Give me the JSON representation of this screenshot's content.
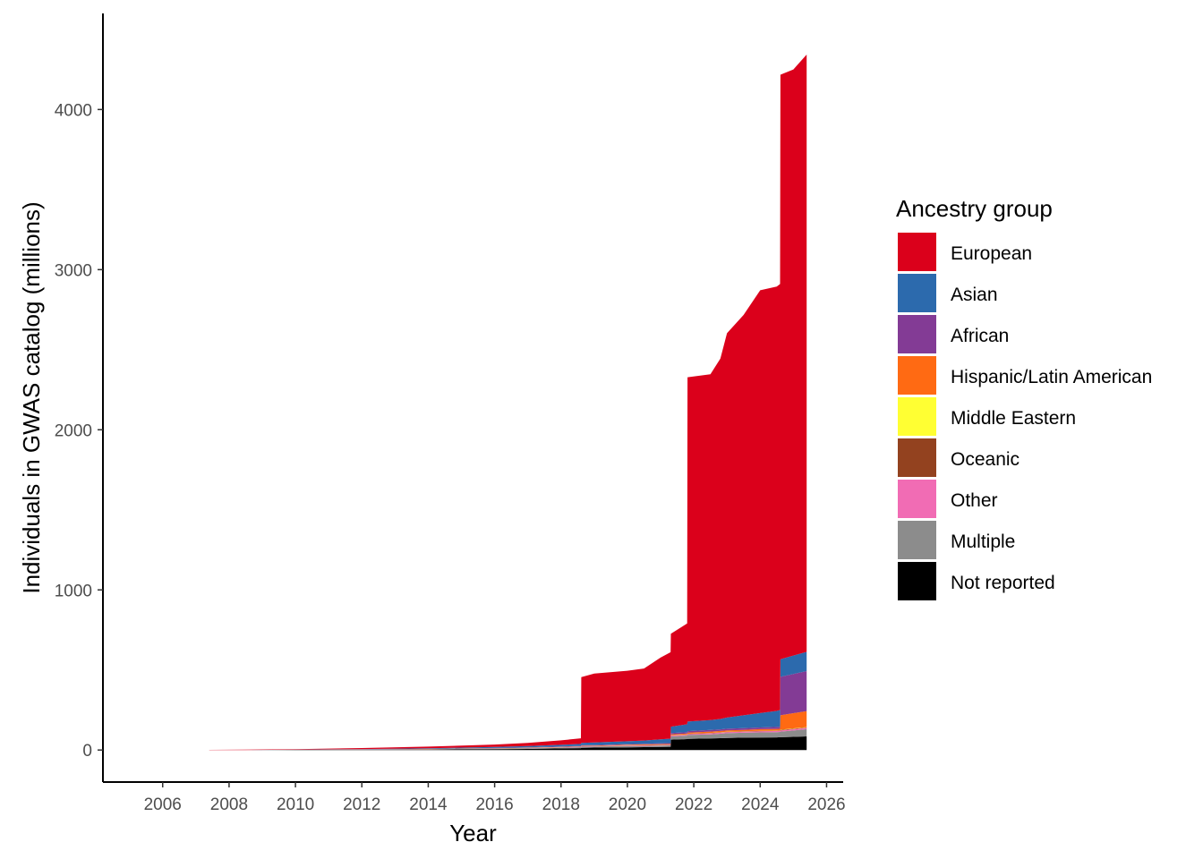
{
  "chart_data": {
    "type": "area",
    "stacked": true,
    "title": "",
    "xlabel": "Year",
    "ylabel": "Individuals in GWAS catalog (millions)",
    "xlim": [
      2004.2,
      2026.5
    ],
    "ylim": [
      -200,
      4600
    ],
    "x_ticks": [
      2006,
      2008,
      2010,
      2012,
      2014,
      2016,
      2018,
      2020,
      2022,
      2024,
      2026
    ],
    "y_ticks": [
      0,
      1000,
      2000,
      3000,
      4000
    ],
    "grid": false,
    "legend_position": "right",
    "legend_title": "Ancestry group",
    "x": [
      2007.4,
      2008.5,
      2010,
      2012,
      2014,
      2016,
      2017,
      2018,
      2018.6,
      2018.61,
      2019,
      2020,
      2020.5,
      2021,
      2021.3,
      2021.31,
      2021.8,
      2021.81,
      2022.5,
      2022.8,
      2023,
      2023.5,
      2024,
      2024.5,
      2024.6,
      2024.61,
      2025,
      2025.4
    ],
    "series": [
      {
        "name": "Not reported",
        "color": "#000000",
        "values": [
          0,
          0.3,
          1,
          2,
          3,
          5,
          7,
          10,
          12,
          14,
          15,
          17,
          18,
          19,
          20,
          65,
          68,
          70,
          72,
          74,
          75,
          77,
          78,
          79,
          80,
          80,
          82,
          85
        ]
      },
      {
        "name": "Multiple",
        "color": "#8c8c8c",
        "values": [
          0,
          0,
          0.5,
          1,
          2,
          3,
          4,
          5,
          6,
          7,
          7,
          8,
          8,
          9,
          9,
          20,
          22,
          24,
          26,
          28,
          30,
          31,
          32,
          33,
          33,
          35,
          40,
          45
        ]
      },
      {
        "name": "Other",
        "color": "#f16cb4",
        "values": [
          0,
          0,
          0,
          0.3,
          0.5,
          1,
          1,
          1.5,
          2,
          2,
          2,
          3,
          3,
          3,
          3,
          5,
          5,
          5,
          6,
          6,
          6,
          6,
          7,
          7,
          7,
          7,
          8,
          8
        ]
      },
      {
        "name": "Oceanic",
        "color": "#93421f",
        "values": [
          0,
          0,
          0,
          0,
          0,
          0.5,
          0.5,
          0.5,
          0.5,
          0.5,
          0.5,
          1,
          1,
          1,
          1,
          1,
          1,
          2,
          2,
          2,
          2,
          2,
          2,
          2,
          2,
          3,
          3,
          3
        ]
      },
      {
        "name": "Middle Eastern",
        "color": "#ffff33",
        "values": [
          0,
          0,
          0,
          0,
          0,
          0.5,
          0.5,
          0.5,
          0.5,
          0.5,
          0.5,
          1,
          1,
          1,
          1,
          1,
          1,
          1,
          1,
          1,
          1,
          1,
          1,
          1,
          1,
          2,
          2,
          2
        ]
      },
      {
        "name": "Hispanic/Latin American",
        "color": "#ff6a13",
        "values": [
          0,
          0,
          0,
          0.5,
          1,
          1,
          1.5,
          2,
          2,
          3,
          3,
          3,
          4,
          4,
          4,
          6,
          6,
          7,
          8,
          8,
          9,
          9,
          10,
          10,
          10,
          90,
          95,
          100
        ]
      },
      {
        "name": "African",
        "color": "#833b95",
        "values": [
          0,
          0,
          0.3,
          0.5,
          1,
          2,
          2,
          3,
          3,
          3,
          3,
          4,
          4,
          5,
          5,
          8,
          8,
          9,
          10,
          10,
          10,
          11,
          11,
          12,
          12,
          240,
          245,
          250
        ]
      },
      {
        "name": "Asian",
        "color": "#2c6aad",
        "values": [
          0,
          0,
          1,
          2,
          4,
          6,
          8,
          10,
          12,
          15,
          16,
          18,
          20,
          25,
          28,
          40,
          50,
          60,
          62,
          65,
          70,
          80,
          90,
          100,
          105,
          110,
          115,
          120
        ]
      },
      {
        "name": "European",
        "color": "#db001b",
        "values": [
          1,
          2,
          3,
          6,
          10,
          15,
          20,
          28,
          35,
          410,
          430,
          440,
          450,
          510,
          540,
          580,
          630,
          2150,
          2160,
          2250,
          2400,
          2500,
          2640,
          2650,
          2660,
          3650,
          3660,
          3730
        ]
      }
    ]
  }
}
